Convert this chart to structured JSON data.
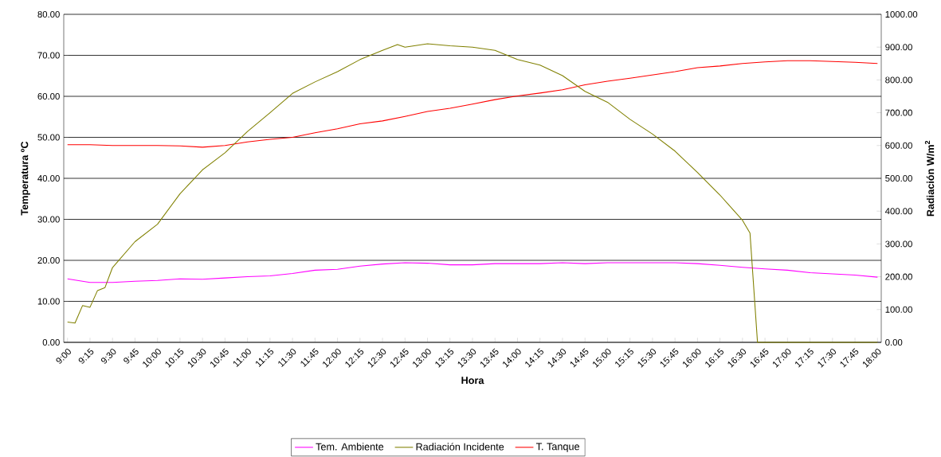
{
  "chart_data": {
    "type": "line",
    "xlabel": "Hora",
    "ylabel": "Temperatura ºC",
    "y2label": "Radiación W/m$^{2}$",
    "x": [
      9,
      9.25,
      9.5,
      9.75,
      10,
      10.25,
      10.5,
      10.75,
      11,
      11.25,
      11.5,
      11.75,
      12,
      12.25,
      12.5,
      12.75,
      13,
      13.25,
      13.5,
      13.75,
      14,
      14.25,
      14.5,
      14.75,
      15,
      15.25,
      15.5,
      15.75,
      16,
      16.25,
      16.5,
      16.75,
      17,
      17.25,
      17.5,
      17.75,
      18
    ],
    "series": [
      {
        "name": "Tem. Ambiente",
        "color": "#ff00ff",
        "values": [
          15.5,
          14.6,
          14.6,
          14.9,
          15.1,
          15.5,
          15.4,
          15.7,
          16.0,
          16.2,
          16.8,
          17.6,
          17.8,
          18.6,
          19.1,
          19.4,
          19.3,
          18.9,
          18.9,
          19.2,
          19.2,
          19.2,
          19.4,
          19.2,
          19.4,
          19.4,
          19.4,
          19.4,
          19.2,
          18.8,
          18.3,
          17.9,
          17.6,
          17.0,
          16.7,
          16.4,
          15.9
        ]
      },
      {
        "name": "Radiación Incidente",
        "color": "#808000",
        "axis": "y2",
        "x": [
          9,
          9.0833,
          9.1667,
          9.25,
          9.3333,
          9.4167,
          9.5,
          9.75,
          10,
          10.25,
          10.5,
          10.75,
          11,
          11.25,
          11.5,
          11.75,
          12,
          12.25,
          12.5,
          12.6667,
          12.75,
          13,
          13.25,
          13.5,
          13.75,
          14,
          14.25,
          14.5,
          14.75,
          15,
          15.25,
          15.5,
          15.75,
          16,
          16.25,
          16.5,
          16.5833,
          16.6667,
          18
        ],
        "values": [
          62,
          59,
          112,
          107,
          158,
          167,
          228,
          307,
          360,
          453,
          526,
          578,
          643,
          700,
          759,
          794,
          825,
          862,
          890,
          908,
          900,
          910,
          904,
          900,
          890,
          862,
          845,
          813,
          765,
          732,
          680,
          635,
          583,
          518,
          449,
          372,
          333,
          0,
          0
        ]
      },
      {
        "name": "T. Tanque",
        "color": "#ff0000",
        "values": [
          48.2,
          48.2,
          48.0,
          48.0,
          48.0,
          47.9,
          47.6,
          48.0,
          48.9,
          49.5,
          50.0,
          51.1,
          52.1,
          53.3,
          54.0,
          55.1,
          56.3,
          57.1,
          58.1,
          59.2,
          60.1,
          60.8,
          61.6,
          62.8,
          63.7,
          64.4,
          65.2,
          66.0,
          67.0,
          67.4,
          68.0,
          68.4,
          68.7,
          68.7,
          68.5,
          68.3,
          68.0
        ]
      }
    ],
    "xlim": [
      8.9583,
      18.0417
    ],
    "xticks": [
      {
        "value": 9,
        "label": "9:00"
      },
      {
        "value": 9.25,
        "label": "9:15"
      },
      {
        "value": 9.5,
        "label": "9:30"
      },
      {
        "value": 9.75,
        "label": "9:45"
      },
      {
        "value": 10,
        "label": "10:00"
      },
      {
        "value": 10.25,
        "label": "10:15"
      },
      {
        "value": 10.5,
        "label": "10:30"
      },
      {
        "value": 10.75,
        "label": "10:45"
      },
      {
        "value": 11,
        "label": "11:00"
      },
      {
        "value": 11.25,
        "label": "11:15"
      },
      {
        "value": 11.5,
        "label": "11:30"
      },
      {
        "value": 11.75,
        "label": "11:45"
      },
      {
        "value": 12,
        "label": "12:00"
      },
      {
        "value": 12.25,
        "label": "12:15"
      },
      {
        "value": 12.5,
        "label": "12:30"
      },
      {
        "value": 12.75,
        "label": "12:45"
      },
      {
        "value": 13,
        "label": "13:00"
      },
      {
        "value": 13.25,
        "label": "13:15"
      },
      {
        "value": 13.5,
        "label": "13:30"
      },
      {
        "value": 13.75,
        "label": "13:45"
      },
      {
        "value": 14,
        "label": "14:00"
      },
      {
        "value": 14.25,
        "label": "14:15"
      },
      {
        "value": 14.5,
        "label": "14:30"
      },
      {
        "value": 14.75,
        "label": "14:45"
      },
      {
        "value": 15,
        "label": "15:00"
      },
      {
        "value": 15.25,
        "label": "15:15"
      },
      {
        "value": 15.5,
        "label": "15:30"
      },
      {
        "value": 15.75,
        "label": "15:45"
      },
      {
        "value": 16,
        "label": "16:00"
      },
      {
        "value": 16.25,
        "label": "16:15"
      },
      {
        "value": 16.5,
        "label": "16:30"
      },
      {
        "value": 16.75,
        "label": "16:45"
      },
      {
        "value": 17,
        "label": "17:00"
      },
      {
        "value": 17.25,
        "label": "17:15"
      },
      {
        "value": 17.5,
        "label": "17:30"
      },
      {
        "value": 17.75,
        "label": "17:45"
      },
      {
        "value": 18,
        "label": "18:00"
      }
    ],
    "ylim": [
      0,
      80
    ],
    "yticks": [
      {
        "value": 0,
        "label": "0.00"
      },
      {
        "value": 10,
        "label": "10.00"
      },
      {
        "value": 20,
        "label": "20.00"
      },
      {
        "value": 30,
        "label": "30.00"
      },
      {
        "value": 40,
        "label": "40.00"
      },
      {
        "value": 50,
        "label": "50.00"
      },
      {
        "value": 60,
        "label": "60.00"
      },
      {
        "value": 70,
        "label": "70.00"
      },
      {
        "value": 80,
        "label": "80.00"
      }
    ],
    "y2lim": [
      0,
      1000
    ],
    "y2ticks": [
      {
        "value": 0,
        "label": "0.00"
      },
      {
        "value": 100,
        "label": "100.00"
      },
      {
        "value": 200,
        "label": "200.00"
      },
      {
        "value": 300,
        "label": "300.00"
      },
      {
        "value": 400,
        "label": "400.00"
      },
      {
        "value": 500,
        "label": "500.00"
      },
      {
        "value": 600,
        "label": "600.00"
      },
      {
        "value": 700,
        "label": "700.00"
      },
      {
        "value": 800,
        "label": "800.00"
      },
      {
        "value": 900,
        "label": "900.00"
      },
      {
        "value": 1000,
        "label": "1000.00"
      }
    ],
    "grid": "y",
    "legend": "bottom",
    "marker": "none",
    "line_style": "solid"
  }
}
